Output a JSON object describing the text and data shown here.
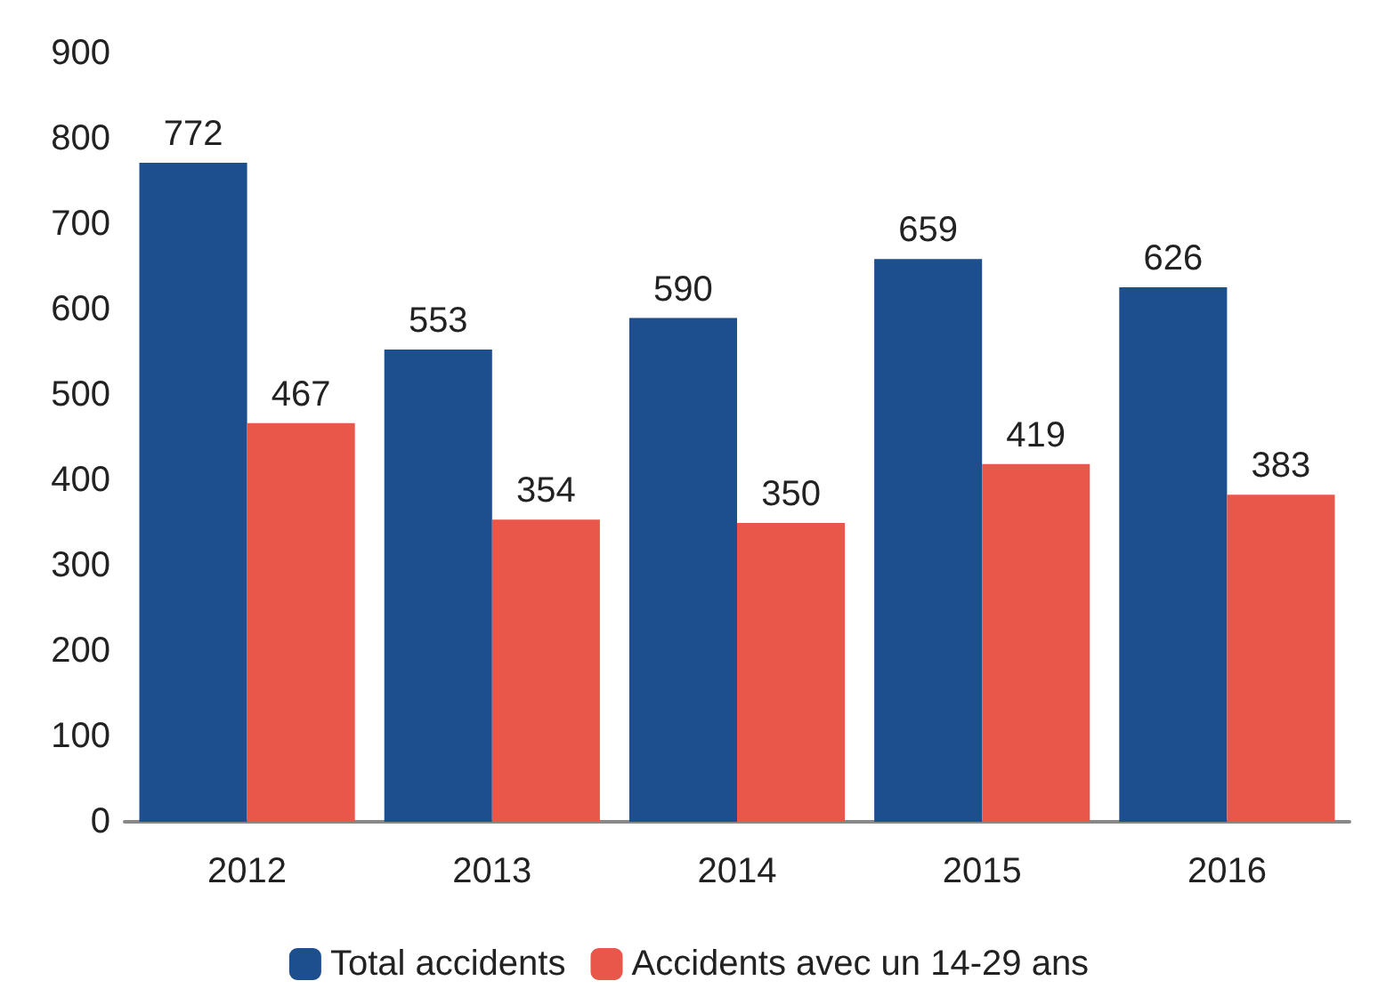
{
  "chart_data": {
    "type": "bar",
    "categories": [
      "2012",
      "2013",
      "2014",
      "2015",
      "2016"
    ],
    "series": [
      {
        "name": "Total accidents",
        "color": "#1d4f8f",
        "values": [
          772,
          553,
          590,
          659,
          626
        ]
      },
      {
        "name": "Accidents avec un 14-29 ans",
        "color": "#e8574a",
        "values": [
          467,
          354,
          350,
          419,
          383
        ]
      }
    ],
    "ylim": [
      0,
      900
    ],
    "yticks": [
      0,
      100,
      200,
      300,
      400,
      500,
      600,
      700,
      800,
      900
    ],
    "grid": false,
    "legend": "bottom",
    "data_labels": true
  }
}
